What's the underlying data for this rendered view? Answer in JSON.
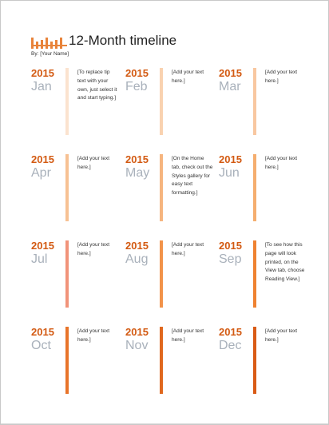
{
  "document": {
    "title": "12-Month timeline",
    "byline": "By: [Your Name]",
    "logo_icon": "bar-chart-logo-icon",
    "accent_color": "#d35a12",
    "month_color": "#a9b1bb"
  },
  "months": [
    {
      "year": "2015",
      "month": "Jan",
      "note": "[To replace tip text with your own, just select it and start typing.]",
      "stripe_color": "#fbe3cf"
    },
    {
      "year": "2015",
      "month": "Feb",
      "note": "[Add your text here.]",
      "stripe_color": "#f9d2b0"
    },
    {
      "year": "2015",
      "month": "Mar",
      "note": "[Add your text here.]",
      "stripe_color": "#f8c7a0"
    },
    {
      "year": "2015",
      "month": "Apr",
      "note": "[Add your text here.]",
      "stripe_color": "#f7c193"
    },
    {
      "year": "2015",
      "month": "May",
      "note": "[On the Home tab, check out the Styles gallery for easy text formatting.]",
      "stripe_color": "#f6b57f"
    },
    {
      "year": "2015",
      "month": "Jun",
      "note": "[Add your text here.]",
      "stripe_color": "#f5ae6f"
    },
    {
      "year": "2015",
      "month": "Jul",
      "note": "[Add your text here.]",
      "stripe_color": "#f1937a"
    },
    {
      "year": "2015",
      "month": "Aug",
      "note": "[Add your text here.]",
      "stripe_color": "#f2934a"
    },
    {
      "year": "2015",
      "month": "Sep",
      "note": "[To see how this page will look printed, on the View tab, choose Reading View.]",
      "stripe_color": "#ef8231"
    },
    {
      "year": "2015",
      "month": "Oct",
      "note": "[Add your text here.]",
      "stripe_color": "#e8742a"
    },
    {
      "year": "2015",
      "month": "Nov",
      "note": "[Add your text here.]",
      "stripe_color": "#e0681e"
    },
    {
      "year": "2015",
      "month": "Dec",
      "note": "[Add your text here.]",
      "stripe_color": "#d95b16"
    }
  ]
}
